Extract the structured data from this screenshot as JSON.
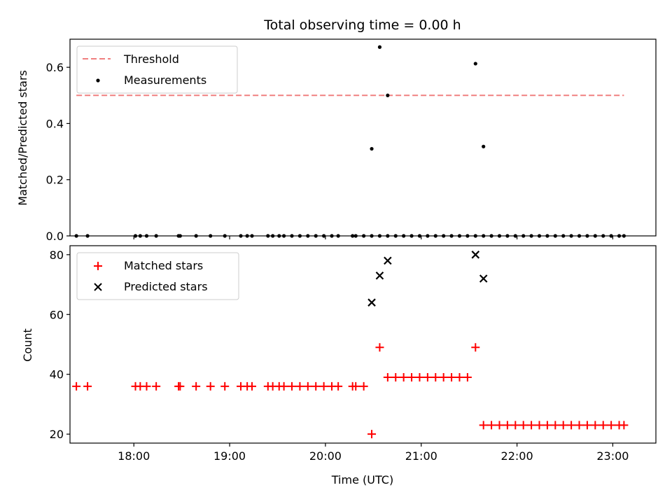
{
  "chart_data": [
    {
      "type": "scatter",
      "title": "Total observing time = 0.00 h",
      "xlabel": "",
      "ylabel": "Matched/Predicted stars",
      "xlim": [
        "17:20",
        "23:27"
      ],
      "ylim": [
        0,
        0.7
      ],
      "yticks": [
        "0.0",
        "0.2",
        "0.4",
        "0.6"
      ],
      "legend_position": "top-left",
      "grid": false,
      "threshold": {
        "name": "Threshold",
        "value": 0.5,
        "x_range": [
          "17:24",
          "23:07"
        ],
        "style": "dashed",
        "color": "#f08080"
      },
      "series": [
        {
          "name": "Measurements",
          "marker": "dot",
          "color": "#000000",
          "x": [
            "17:24",
            "17:31",
            "18:01",
            "18:04",
            "18:08",
            "18:14",
            "18:28",
            "18:29",
            "18:39",
            "18:48",
            "18:57",
            "19:07",
            "19:11",
            "19:14",
            "19:24",
            "19:27",
            "19:31",
            "19:34",
            "19:39",
            "19:44",
            "19:49",
            "19:54",
            "19:59",
            "20:04",
            "20:08",
            "20:17",
            "20:19",
            "20:24",
            "20:29",
            "20:34",
            "20:39",
            "20:44",
            "20:49",
            "20:54",
            "20:59",
            "21:04",
            "21:09",
            "21:14",
            "21:19",
            "21:24",
            "21:29",
            "21:34",
            "21:39",
            "21:44",
            "21:49",
            "21:54",
            "21:59",
            "22:04",
            "22:09",
            "22:14",
            "22:19",
            "22:24",
            "22:29",
            "22:34",
            "22:39",
            "22:44",
            "22:49",
            "22:54",
            "22:59",
            "23:04",
            "23:07",
            "20:29",
            "20:34",
            "20:39",
            "21:34",
            "21:39"
          ],
          "y": [
            0,
            0,
            0,
            0,
            0,
            0,
            0,
            0,
            0,
            0,
            0,
            0,
            0,
            0,
            0,
            0,
            0,
            0,
            0,
            0,
            0,
            0,
            0,
            0,
            0,
            0,
            0,
            0,
            0,
            0,
            0,
            0,
            0,
            0,
            0,
            0,
            0,
            0,
            0,
            0,
            0,
            0,
            0,
            0,
            0,
            0,
            0,
            0,
            0,
            0,
            0,
            0,
            0,
            0,
            0,
            0,
            0,
            0,
            0,
            0,
            0,
            0.31,
            0.672,
            0.5,
            0.613,
            0.318
          ]
        }
      ]
    },
    {
      "type": "scatter",
      "title": "",
      "xlabel": "Time (UTC)",
      "ylabel": "Count",
      "xlim": [
        "17:20",
        "23:27"
      ],
      "ylim": [
        17,
        83
      ],
      "yticks": [
        "20",
        "40",
        "60",
        "80"
      ],
      "xticks": [
        "18:00",
        "19:00",
        "20:00",
        "21:00",
        "22:00",
        "23:00"
      ],
      "legend_position": "top-left",
      "grid": false,
      "series": [
        {
          "name": "Matched stars",
          "marker": "plus",
          "color": "#ff0000",
          "x": [
            "17:24",
            "17:31",
            "18:01",
            "18:04",
            "18:08",
            "18:14",
            "18:28",
            "18:29",
            "18:39",
            "18:48",
            "18:57",
            "19:07",
            "19:11",
            "19:14",
            "19:24",
            "19:27",
            "19:31",
            "19:34",
            "19:39",
            "19:44",
            "19:49",
            "19:54",
            "19:59",
            "20:04",
            "20:08",
            "20:17",
            "20:19",
            "20:24",
            "20:29",
            "20:34",
            "20:39",
            "20:44",
            "20:49",
            "20:54",
            "20:59",
            "21:04",
            "21:09",
            "21:14",
            "21:19",
            "21:24",
            "21:29",
            "21:34",
            "21:39",
            "21:44",
            "21:49",
            "21:54",
            "21:59",
            "22:04",
            "22:09",
            "22:14",
            "22:19",
            "22:24",
            "22:29",
            "22:34",
            "22:39",
            "22:44",
            "22:49",
            "22:54",
            "22:59",
            "23:04",
            "23:07"
          ],
          "y": [
            36,
            36,
            36,
            36,
            36,
            36,
            36,
            36,
            36,
            36,
            36,
            36,
            36,
            36,
            36,
            36,
            36,
            36,
            36,
            36,
            36,
            36,
            36,
            36,
            36,
            36,
            36,
            36,
            20,
            49,
            39,
            39,
            39,
            39,
            39,
            39,
            39,
            39,
            39,
            39,
            39,
            49,
            23,
            23,
            23,
            23,
            23,
            23,
            23,
            23,
            23,
            23,
            23,
            23,
            23,
            23,
            23,
            23,
            23,
            23,
            23
          ]
        },
        {
          "name": "Predicted stars",
          "marker": "x",
          "color": "#000000",
          "x": [
            "20:29",
            "20:34",
            "20:39",
            "21:34",
            "21:39"
          ],
          "y": [
            64,
            73,
            78,
            80,
            72
          ]
        }
      ]
    }
  ]
}
